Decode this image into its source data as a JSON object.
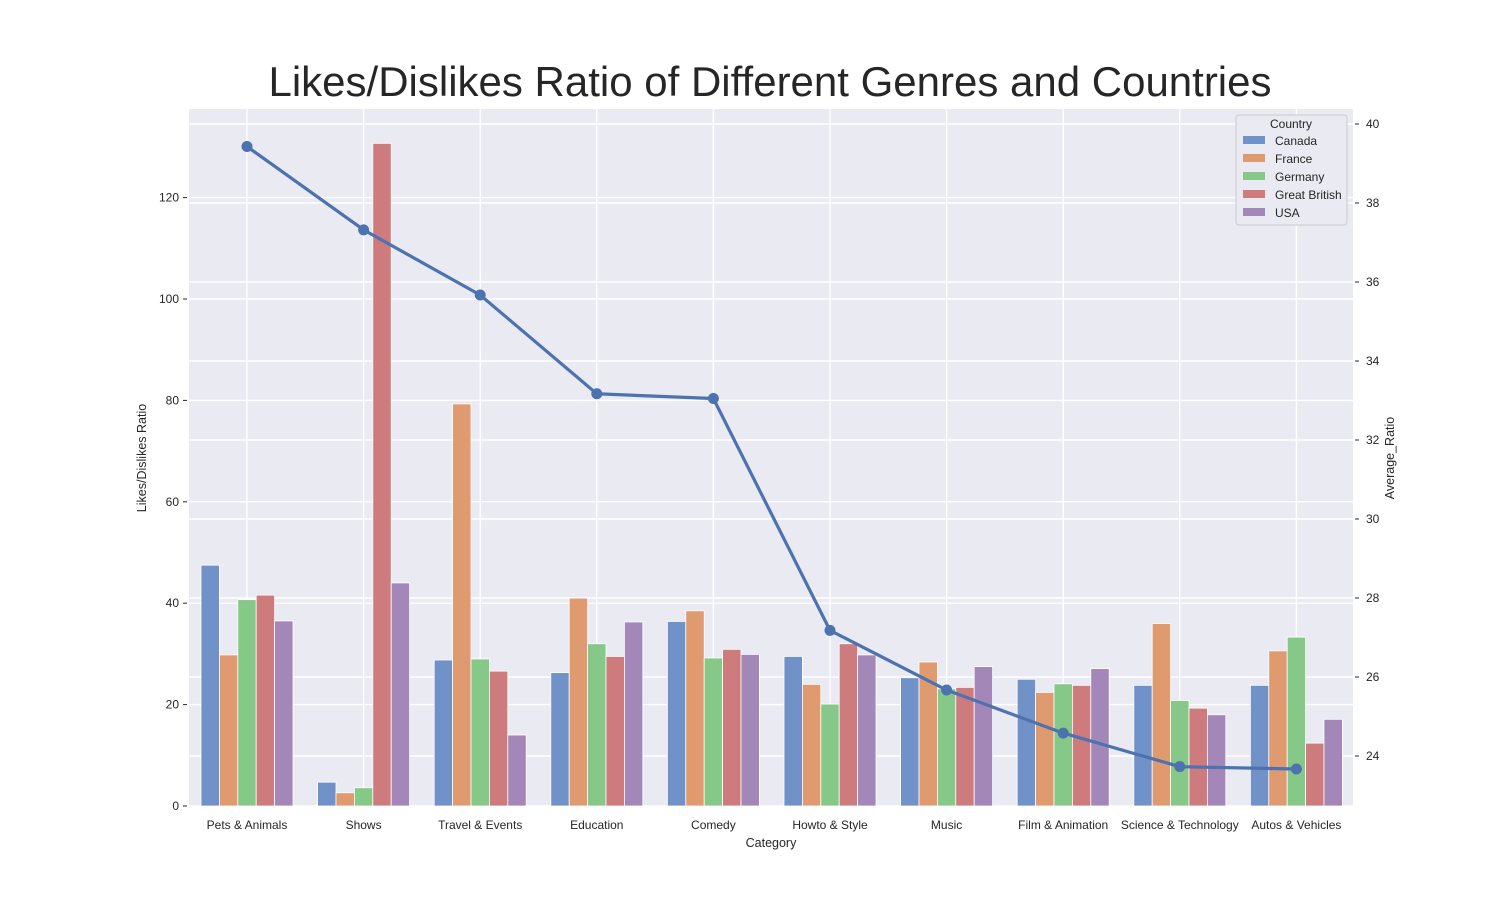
{
  "chart_data": {
    "type": "bar",
    "title": "Likes/Dislikes Ratio of Different Genres and Countries",
    "xlabel": "Category",
    "ylabel": "Likes/Dislikes Ratio",
    "y2label": "Average_Ratio",
    "ylim": [
      0,
      135
    ],
    "y2lim": [
      22.8,
      40.3
    ],
    "yticks": [
      0,
      20,
      40,
      60,
      80,
      100,
      120
    ],
    "y2ticks": [
      24,
      26,
      28,
      30,
      32,
      34,
      36,
      38,
      40
    ],
    "grid": true,
    "legend": {
      "title": "Country",
      "placement": "top-right"
    },
    "categories": [
      "Pets & Animals",
      "Shows",
      "Travel & Events",
      "Education",
      "Comedy",
      "Howto & Style",
      "Music",
      "Film & Animation",
      "Science & Technology",
      "Autos & Vehicles"
    ],
    "series": [
      {
        "name": "Canada",
        "color": "#7092c9",
        "values": [
          47.5,
          4.7,
          28.8,
          26.3,
          36.4,
          29.5,
          25.3,
          25.0,
          23.8,
          23.8
        ]
      },
      {
        "name": "France",
        "color": "#df9a70",
        "values": [
          29.8,
          2.6,
          79.3,
          41.0,
          38.5,
          24.0,
          28.4,
          22.4,
          36.0,
          30.6
        ]
      },
      {
        "name": "Germany",
        "color": "#86c888",
        "values": [
          40.7,
          3.6,
          29.0,
          32.0,
          29.2,
          20.1,
          23.1,
          24.1,
          20.8,
          33.3
        ]
      },
      {
        "name": "Great British",
        "color": "#cd7b7d",
        "values": [
          41.6,
          130.7,
          26.6,
          29.5,
          30.9,
          32.0,
          23.4,
          23.8,
          19.3,
          12.4
        ]
      },
      {
        "name": "USA",
        "color": "#a387b8",
        "values": [
          36.5,
          44.0,
          14.0,
          36.3,
          29.9,
          29.8,
          27.5,
          27.1,
          18.0,
          17.1
        ]
      }
    ],
    "line": {
      "name": "Average_Ratio",
      "color": "#4c72b0",
      "values": [
        39.43,
        37.32,
        35.67,
        33.17,
        33.05,
        27.18,
        25.67,
        24.58,
        23.73,
        23.67
      ]
    }
  }
}
